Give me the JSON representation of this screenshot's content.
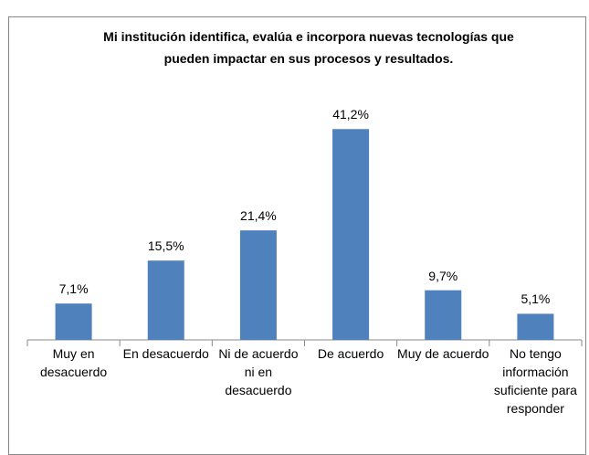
{
  "chart_data": {
    "type": "bar",
    "title": "Mi institución identifica, evalúa e incorpora nuevas tecnologías que pueden impactar en sus procesos y resultados.",
    "categories": [
      "Muy en desacuerdo",
      "En desacuerdo",
      "Ni de acuerdo ni en desacuerdo",
      "De acuerdo",
      "Muy de acuerdo",
      "No tengo información suficiente para responder"
    ],
    "values": [
      7.1,
      15.5,
      21.4,
      41.2,
      9.7,
      5.1
    ],
    "value_labels": [
      "7,1%",
      "15,5%",
      "21,4%",
      "41,2%",
      "9,7%",
      "5,1%"
    ],
    "color": "#4f81bd",
    "ylim": [
      0,
      45
    ]
  }
}
